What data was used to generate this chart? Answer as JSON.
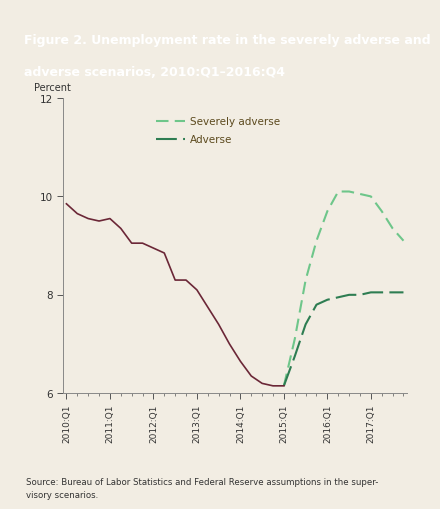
{
  "title_line1": "Figure 2. Unemployment rate in the severely adverse and",
  "title_line2": "adverse scenarios, 2010:Q1–2016:Q4",
  "title_bg_color": "#7B2D2D",
  "title_text_color": "#FFFFFF",
  "bg_color": "#F2EDE3",
  "source_text": "Source: Bureau of Labor Statistics and Federal Reserve assumptions in the super-\nvisory scenarios.",
  "ylabel": "Percent",
  "ylim": [
    6,
    12
  ],
  "yticks": [
    6,
    8,
    10,
    12
  ],
  "xtick_labels": [
    "2010:Q1",
    "2011:Q1",
    "2012:Q1",
    "2013:Q1",
    "2014:Q1",
    "2015:Q1",
    "2016:Q1",
    "2017:Q1"
  ],
  "legend_text_color": "#5C4A1E",
  "historical_color": "#6B2737",
  "severely_adverse_color": "#6EC68A",
  "adverse_color": "#2E7D52",
  "historical_x": [
    0,
    1,
    2,
    3,
    4,
    5,
    6,
    7,
    8,
    9,
    10,
    11,
    12,
    13,
    14,
    15,
    16,
    17,
    18,
    19,
    20
  ],
  "historical_y": [
    9.85,
    9.65,
    9.55,
    9.5,
    9.55,
    9.35,
    9.05,
    9.05,
    8.95,
    8.85,
    8.3,
    8.3,
    8.1,
    7.75,
    7.4,
    7.0,
    6.65,
    6.35,
    6.2,
    6.15,
    6.15
  ],
  "severely_adverse_x": [
    20,
    21,
    22,
    23,
    24,
    25,
    26,
    27,
    28,
    29,
    30,
    31
  ],
  "severely_adverse_y": [
    6.15,
    7.1,
    8.3,
    9.1,
    9.7,
    10.1,
    10.1,
    10.05,
    10.0,
    9.7,
    9.35,
    9.1
  ],
  "adverse_x": [
    20,
    21,
    22,
    23,
    24,
    25,
    26,
    27,
    28,
    29,
    30,
    31
  ],
  "adverse_y": [
    6.15,
    6.75,
    7.4,
    7.8,
    7.9,
    7.95,
    8.0,
    8.0,
    8.05,
    8.05,
    8.05,
    8.05
  ]
}
